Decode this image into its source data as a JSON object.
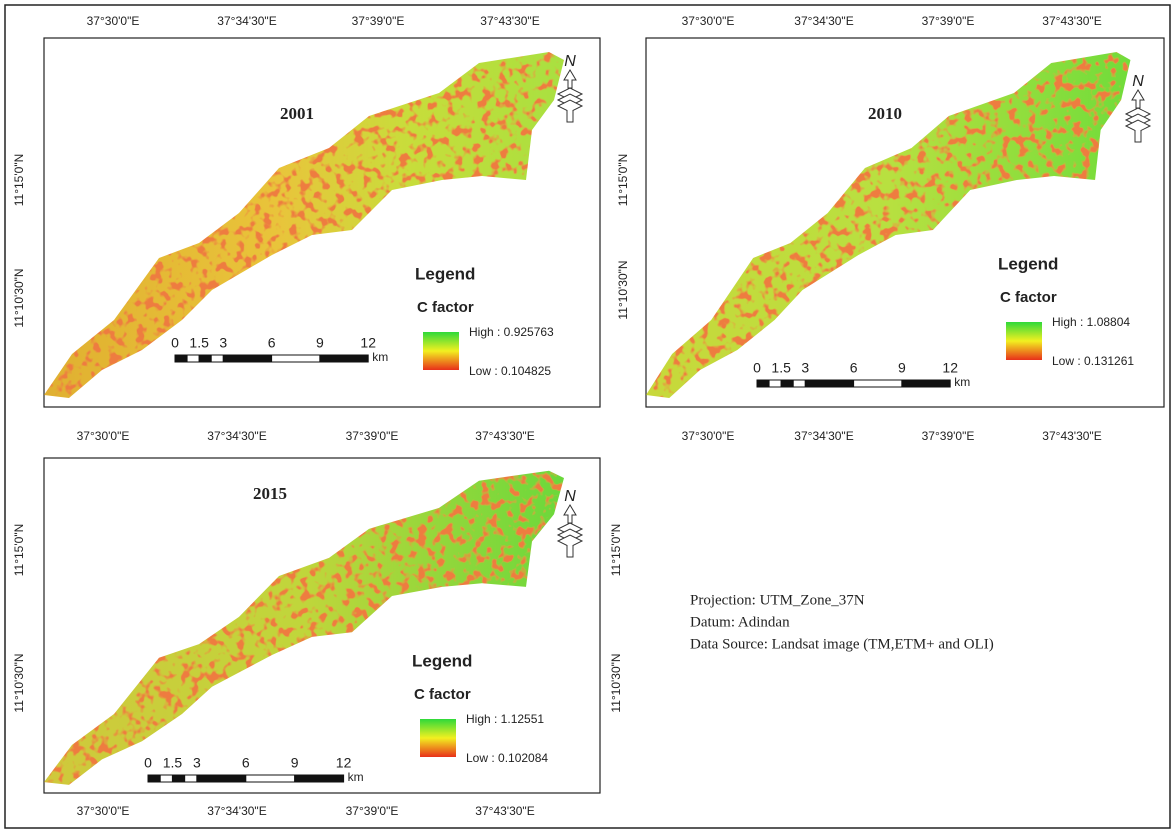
{
  "panels": [
    {
      "title": "2001",
      "top_labels": [
        "37°30'0\"E",
        "37°34'30\"E",
        "37°39'0\"E",
        "37°43'30\"E"
      ],
      "left_labels": [
        "11°15'0\"N",
        "11°10'30\"N"
      ],
      "north": "N",
      "legend": {
        "title": "Legend",
        "field": "C factor",
        "high": "High : 0.925763",
        "low": "Low : 0.104825"
      },
      "scale": {
        "ticks": [
          0,
          1.5,
          3,
          6,
          9,
          12
        ],
        "unit": "km"
      }
    },
    {
      "title": "2010",
      "top_labels": [
        "37°30'0\"E",
        "37°34'30\"E",
        "37°39'0\"E",
        "37°43'30\"E"
      ],
      "bottom_labels": [
        "37°30'0\"E",
        "37°34'30\"E",
        "37°39'0\"E",
        "37°43'30\"E"
      ],
      "left_labels": [
        "11°15'0\"N",
        "11°10'30\"N"
      ],
      "north": "N",
      "legend": {
        "title": "Legend",
        "field": "C factor",
        "high": "High : 1.08804",
        "low": "Low : 0.131261"
      },
      "scale": {
        "ticks": [
          0,
          1.5,
          3,
          6,
          9,
          12
        ],
        "unit": "km"
      }
    },
    {
      "title": "2015",
      "top_labels": [
        "37°30'0\"E",
        "37°34'30\"E",
        "37°39'0\"E",
        "37°43'30\"E"
      ],
      "bottom_labels": [
        "37°30'0\"E",
        "37°34'30\"E",
        "37°39'0\"E",
        "37°43'30\"E"
      ],
      "left_labels": [
        "11°15'0\"N",
        "11°10'30\"N"
      ],
      "right_labels": [
        "11°15'0\"N",
        "11°10'30\"N"
      ],
      "north": "N",
      "legend": {
        "title": "Legend",
        "field": "C factor",
        "high": "High : 1.12551",
        "low": "Low : 0.102084"
      },
      "scale": {
        "ticks": [
          0,
          1.5,
          3,
          6,
          9,
          12
        ],
        "unit": "km"
      }
    }
  ],
  "info": [
    "Projection: UTM_Zone_37N",
    "Datum: Adindan",
    "Data Source: Landsat image (TM,ETM+ and OLI)"
  ]
}
